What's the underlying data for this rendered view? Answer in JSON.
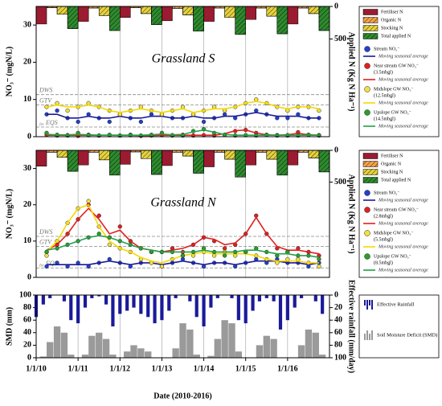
{
  "chart_data": [
    {
      "type": "combo",
      "title": "Grassland S",
      "ylabel": "NO₃⁻ (mgN/L)",
      "y2label": "Applied N (Kg N Ha⁻¹)",
      "xlim": [
        2010,
        2017
      ],
      "ylim": [
        0,
        35
      ],
      "yticks": [
        0,
        10,
        20,
        30
      ],
      "y2lim": [
        0,
        2000
      ],
      "y2ticks": [
        0,
        500
      ],
      "y2_inverted": true,
      "grid": true,
      "ref_lines": [
        {
          "label": "DWS",
          "value": 11.3
        },
        {
          "label": "GTV",
          "value": 8.5
        },
        {
          "label": "EQS",
          "prefix": "Ire",
          "value": 2.6
        }
      ],
      "bar_years": [
        2010,
        2011,
        2012,
        2013,
        2014,
        2015,
        2016
      ],
      "bar_series": [
        {
          "name": "Fertiliser  N",
          "color": "#9b1b30",
          "hatch": false,
          "values": [
            270,
            230,
            170,
            220,
            230,
            200,
            270
          ]
        },
        {
          "name": "Organic  N",
          "color": "#f4a24a",
          "hatch": true,
          "values": [
            20,
            25,
            20,
            30,
            25,
            25,
            25
          ]
        },
        {
          "name": "Stocking  N",
          "color": "#e6d23c",
          "hatch": true,
          "values": [
            120,
            140,
            110,
            130,
            170,
            150,
            110
          ]
        },
        {
          "name": "Total applied  N",
          "color": "#2e8b2e",
          "hatch": true,
          "values": [
            340,
            370,
            280,
            380,
            430,
            420,
            370
          ]
        }
      ],
      "x": [
        2010.25,
        2010.5,
        2010.75,
        2011,
        2011.25,
        2011.5,
        2011.75,
        2012,
        2012.25,
        2012.5,
        2012.75,
        2013,
        2013.25,
        2013.5,
        2013.75,
        2014,
        2014.25,
        2014.5,
        2014.75,
        2015,
        2015.25,
        2015.5,
        2015.75,
        2016,
        2016.25,
        2016.5,
        2016.75
      ],
      "series": [
        {
          "name": "Stream NO₃⁻",
          "style": "marker",
          "color": "#2040d0",
          "values": [
            6,
            7,
            5,
            4,
            6,
            5,
            4,
            6,
            5,
            4,
            6,
            6,
            5,
            5,
            6,
            4,
            5,
            6,
            5,
            6,
            7,
            6,
            5,
            5,
            6,
            5,
            5
          ]
        },
        {
          "name": "Moving seasonal average",
          "style": "line",
          "color": "#1a1a9a",
          "values": [
            6,
            6,
            5,
            5,
            5.5,
            5,
            5,
            5.5,
            5,
            5,
            5.5,
            5.5,
            5,
            5,
            5.5,
            5,
            5,
            5.5,
            5.5,
            6,
            6.5,
            6,
            5.5,
            5.5,
            5.5,
            5,
            5
          ]
        },
        {
          "name": "Near stream GW NO₃⁻",
          "depth": "(3.5mbgl)",
          "style": "marker",
          "color": "#e02020",
          "values": [
            0.5,
            0.3,
            0.4,
            0.2,
            0.5,
            0.3,
            0.4,
            0.3,
            0.5,
            0.2,
            0.3,
            0.4,
            0.3,
            0.5,
            0.3,
            0.4,
            0.3,
            0.5,
            1.5,
            1.8,
            1,
            0.5,
            0.4,
            0.3,
            1.2,
            0.5,
            0.4
          ]
        },
        {
          "name": "Moving seasonal average",
          "style": "line",
          "color": "#e02020",
          "values": [
            0.4,
            0.4,
            0.4,
            0.4,
            0.4,
            0.4,
            0.4,
            0.4,
            0.4,
            0.3,
            0.3,
            0.4,
            0.4,
            0.4,
            0.4,
            0.4,
            0.4,
            0.8,
            1.6,
            1.8,
            1,
            0.5,
            0.4,
            0.5,
            0.9,
            0.5,
            0.4
          ]
        },
        {
          "name": "Midslope GW NO₃⁻",
          "depth": "(12.5mbgl)",
          "style": "marker",
          "color": "#f2e040",
          "values": [
            8,
            9,
            7,
            8,
            9,
            8,
            7,
            6,
            7,
            8,
            7,
            6,
            7,
            8,
            6,
            7,
            8,
            7,
            8,
            9,
            10,
            9,
            8,
            7,
            8,
            8,
            7
          ]
        },
        {
          "name": "Moving seasonal average",
          "style": "line",
          "color": "#f5d800",
          "values": [
            8,
            8.5,
            8,
            8,
            8.5,
            8,
            7,
            6.5,
            7,
            7.5,
            7,
            6.5,
            7,
            7.5,
            6.5,
            7,
            7.5,
            7.5,
            8,
            9,
            9.5,
            9,
            8,
            7.5,
            8,
            8,
            7.5
          ]
        },
        {
          "name": "Upslope GW NO₃⁻",
          "depth": "(14.5mbgl)",
          "style": "marker",
          "color": "#2a9d2a",
          "values": [
            1,
            0.5,
            0.3,
            1,
            0.4,
            0.3,
            0.5,
            0.3,
            0.4,
            0.3,
            0.5,
            1,
            0.4,
            0.3,
            1.5,
            2,
            1,
            0.5,
            0.3,
            0.4,
            0.3,
            0.5,
            0.3,
            0.4,
            0.3,
            0.5,
            0.3
          ]
        },
        {
          "name": "Moving seasonal average",
          "style": "line",
          "color": "#22a04a",
          "values": [
            0.6,
            0.5,
            0.5,
            0.6,
            0.5,
            0.4,
            0.4,
            0.4,
            0.4,
            0.4,
            0.5,
            0.7,
            0.5,
            0.6,
            1.3,
            1.8,
            1.2,
            0.6,
            0.4,
            0.4,
            0.4,
            0.4,
            0.4,
            0.4,
            0.4,
            0.4,
            0.4
          ]
        }
      ]
    },
    {
      "type": "combo",
      "title": "Grassland N",
      "ylabel": "NO₃⁻ (mgN/L)",
      "y2label": "Applied N (Kg N Ha⁻¹)",
      "xlim": [
        2010,
        2017
      ],
      "ylim": [
        0,
        35
      ],
      "yticks": [
        0,
        10,
        20,
        30
      ],
      "y2lim": [
        0,
        2000
      ],
      "y2ticks": [
        0,
        500
      ],
      "y2_inverted": true,
      "grid": true,
      "ref_lines": [
        {
          "label": "DWS",
          "value": 11.3
        },
        {
          "label": "GTV",
          "value": 8.5
        },
        {
          "label": "EQS",
          "prefix": "Ire",
          "value": 2.6
        }
      ],
      "bar_years": [
        2010,
        2011,
        2012,
        2013,
        2014,
        2015,
        2016
      ],
      "bar_series": [
        {
          "name": "Fertiliser  N",
          "color": "#9b1b30",
          "hatch": false,
          "values": [
            250,
            230,
            220,
            240,
            260,
            230,
            230
          ]
        },
        {
          "name": "Organic  N",
          "color": "#f4a24a",
          "hatch": true,
          "values": [
            30,
            30,
            25,
            30,
            30,
            30,
            30
          ]
        },
        {
          "name": "Stocking  N",
          "color": "#e6d23c",
          "hatch": true,
          "values": [
            110,
            150,
            130,
            90,
            140,
            140,
            120
          ]
        },
        {
          "name": "Total applied  N",
          "color": "#2e8b2e",
          "hatch": true,
          "values": [
            330,
            390,
            380,
            360,
            420,
            390,
            340
          ]
        }
      ],
      "x": [
        2010.25,
        2010.5,
        2010.75,
        2011,
        2011.25,
        2011.5,
        2011.75,
        2012,
        2012.25,
        2012.5,
        2012.75,
        2013,
        2013.25,
        2013.5,
        2013.75,
        2014,
        2014.25,
        2014.5,
        2014.75,
        2015,
        2015.25,
        2015.5,
        2015.75,
        2016,
        2016.25,
        2016.5,
        2016.75
      ],
      "series": [
        {
          "name": "Stream NO₃⁻",
          "style": "marker",
          "color": "#2040d0",
          "values": [
            3,
            4,
            3,
            4,
            3,
            4,
            5,
            4,
            3,
            4,
            4,
            3,
            4,
            5,
            4,
            3,
            4,
            4,
            3,
            4,
            5,
            4,
            5,
            4,
            4,
            3,
            4
          ]
        },
        {
          "name": "Moving seasonal average",
          "style": "line",
          "color": "#1a1a9a",
          "values": [
            3.5,
            3.5,
            3.5,
            3.5,
            3.5,
            4,
            4.5,
            4,
            3.5,
            4,
            4,
            3.5,
            4,
            4.5,
            4,
            3.5,
            4,
            4,
            3.5,
            4,
            4.5,
            4.5,
            4.5,
            4,
            4,
            3.5,
            4
          ]
        },
        {
          "name": "Near stream GW NO₃⁻",
          "depth": "(2.8mbgl)",
          "style": "marker",
          "color": "#e02020",
          "values": [
            7,
            9,
            12,
            16,
            20,
            17,
            11,
            14,
            10,
            8,
            7,
            7,
            8,
            7,
            9,
            11,
            10,
            8,
            9,
            12,
            17,
            12,
            8,
            7,
            8,
            7,
            6
          ]
        },
        {
          "name": "Moving seasonal average",
          "style": "line",
          "color": "#e02020",
          "values": [
            7.5,
            9,
            12,
            16,
            19,
            16,
            12,
            13,
            10,
            8,
            7.5,
            7,
            7.5,
            8,
            9,
            11,
            10.5,
            9,
            9.5,
            12,
            16.5,
            12,
            8.5,
            7.5,
            7.5,
            7,
            6.5
          ]
        },
        {
          "name": "Midslope GW NO₃⁻",
          "depth": "(5.5mbgl)",
          "style": "marker",
          "color": "#f2e040",
          "values": [
            6,
            10,
            15,
            19,
            21,
            14,
            9,
            8,
            7,
            5,
            4,
            3,
            5,
            6,
            6,
            7,
            6,
            7,
            6,
            7,
            6,
            5,
            4,
            5,
            5,
            4,
            3
          ]
        },
        {
          "name": "Moving seasonal average",
          "style": "line",
          "color": "#f5d800",
          "values": [
            7,
            10,
            15,
            19,
            20,
            14,
            10,
            8,
            7,
            5.5,
            4.5,
            4,
            5,
            6,
            6.5,
            7,
            6.5,
            6.5,
            6.5,
            6.5,
            6,
            5,
            4.5,
            4.5,
            4.5,
            4,
            4
          ]
        },
        {
          "name": "Upslope GW NO₃⁻",
          "depth": "(8.5mbgl)",
          "style": "marker",
          "color": "#2a9d2a",
          "values": [
            7,
            8,
            9,
            10,
            11,
            12,
            11,
            10,
            9,
            8,
            7,
            7,
            7,
            6,
            7,
            8,
            7,
            6,
            7,
            7,
            8,
            7,
            6,
            7,
            6,
            6,
            5
          ]
        },
        {
          "name": "Moving seasonal average",
          "style": "line",
          "color": "#22a04a",
          "values": [
            7.5,
            8,
            9,
            10,
            11,
            11.5,
            11,
            10,
            9,
            8,
            7.5,
            7,
            7,
            7,
            7,
            7.5,
            7,
            7,
            7,
            7.5,
            7.5,
            7,
            6.5,
            6.5,
            6,
            6,
            5.5
          ]
        }
      ]
    },
    {
      "type": "bar",
      "ylabel": "SMD (mm)",
      "y2label": "Effective rainfall (mm/day)",
      "xlabel": "Date (2010-2016)",
      "xlim": [
        2010,
        2017
      ],
      "ylim": [
        0,
        100
      ],
      "yticks": [
        0,
        20,
        40,
        60,
        80,
        100
      ],
      "y2lim": [
        0,
        100
      ],
      "y2ticks": [
        0,
        20,
        40,
        60,
        80,
        100
      ],
      "y2_inverted": true,
      "grid": true,
      "xticks": [
        {
          "value": 2010,
          "label": "1/1/10"
        },
        {
          "value": 2011,
          "label": "1/1/11"
        },
        {
          "value": 2012,
          "label": "1/1/12"
        },
        {
          "value": 2013,
          "label": "1/1/13"
        },
        {
          "value": 2014,
          "label": "1/1/14"
        },
        {
          "value": 2015,
          "label": "1/1/15"
        },
        {
          "value": 2016,
          "label": "1/1/16"
        }
      ],
      "bar_width": 0.16,
      "x": [
        2010,
        2010.17,
        2010.33,
        2010.5,
        2010.67,
        2010.83,
        2011,
        2011.17,
        2011.33,
        2011.5,
        2011.67,
        2011.83,
        2012,
        2012.17,
        2012.33,
        2012.5,
        2012.67,
        2012.83,
        2013,
        2013.17,
        2013.33,
        2013.5,
        2013.67,
        2013.83,
        2014,
        2014.17,
        2014.33,
        2014.5,
        2014.67,
        2014.83,
        2015,
        2015.17,
        2015.33,
        2015.5,
        2015.67,
        2015.83,
        2016,
        2016.17,
        2016.33,
        2016.5,
        2016.67,
        2016.83
      ],
      "series": [
        {
          "name": "Effective Rainfall",
          "axis": "y2",
          "color": "#1a1a9a",
          "values": [
            35,
            15,
            5,
            0,
            10,
            40,
            45,
            20,
            5,
            2,
            15,
            50,
            30,
            25,
            20,
            30,
            35,
            45,
            40,
            25,
            5,
            0,
            10,
            35,
            50,
            20,
            5,
            0,
            5,
            40,
            45,
            25,
            10,
            5,
            10,
            55,
            40,
            20,
            5,
            0,
            10,
            30
          ]
        },
        {
          "name": "Soil Moisture Deficit (SMD)",
          "color": "#9a9a9a",
          "values": [
            0,
            2,
            25,
            50,
            40,
            5,
            0,
            5,
            35,
            40,
            30,
            5,
            0,
            10,
            20,
            15,
            10,
            0,
            0,
            0,
            15,
            55,
            45,
            5,
            0,
            3,
            30,
            60,
            55,
            10,
            0,
            0,
            20,
            35,
            30,
            0,
            0,
            0,
            20,
            45,
            40,
            5
          ]
        }
      ]
    }
  ]
}
